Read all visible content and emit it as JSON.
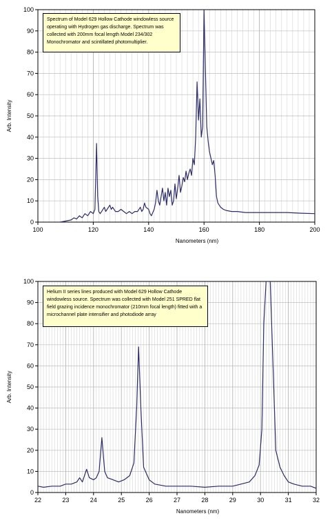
{
  "chart_data": [
    {
      "type": "line",
      "title": "",
      "xlabel": "Nanometers (nm)",
      "ylabel": "Arb. Intensity",
      "xlim": [
        100,
        200
      ],
      "ylim": [
        0,
        100
      ],
      "x_ticks": [
        "100",
        "120",
        "140",
        "160",
        "180",
        "200"
      ],
      "y_ticks": [
        "0",
        "10",
        "20",
        "30",
        "40",
        "50",
        "60",
        "70",
        "80",
        "90",
        "100"
      ],
      "grid": true,
      "annotation": "Spectrum of Model 629 Hollow Cathode windowless source operating with Hydrogen gas discharge. Spectrum was collected with 200mm focal length Model 234/302 Monochromator and scintillated photomultiplier.",
      "series": [
        {
          "color": "#2b2b6b",
          "points": [
            [
              108,
              0
            ],
            [
              110,
              0.5
            ],
            [
              112,
              1
            ],
            [
              113,
              2
            ],
            [
              114,
              1.5
            ],
            [
              115,
              3
            ],
            [
              116,
              2
            ],
            [
              117,
              4
            ],
            [
              118,
              3
            ],
            [
              119,
              5
            ],
            [
              120,
              4
            ],
            [
              120.6,
              6
            ],
            [
              121.2,
              37
            ],
            [
              121.6,
              12
            ],
            [
              122,
              5
            ],
            [
              122.5,
              4
            ],
            [
              123,
              5
            ],
            [
              124,
              7
            ],
            [
              124.5,
              5
            ],
            [
              125,
              6
            ],
            [
              126,
              8
            ],
            [
              126.5,
              6
            ],
            [
              127,
              7
            ],
            [
              128,
              5
            ],
            [
              129,
              5
            ],
            [
              130,
              6
            ],
            [
              131,
              5
            ],
            [
              132,
              4
            ],
            [
              133,
              5
            ],
            [
              134,
              4
            ],
            [
              135,
              5
            ],
            [
              136,
              5
            ],
            [
              137,
              7
            ],
            [
              137.5,
              5
            ],
            [
              138,
              6
            ],
            [
              138.5,
              9
            ],
            [
              139,
              7
            ],
            [
              140,
              6
            ],
            [
              140.5,
              4
            ],
            [
              141,
              3
            ],
            [
              142,
              6
            ],
            [
              142.5,
              9
            ],
            [
              143,
              15
            ],
            [
              143.5,
              10
            ],
            [
              144,
              8
            ],
            [
              144.5,
              12
            ],
            [
              145,
              16
            ],
            [
              145.5,
              10
            ],
            [
              146,
              14
            ],
            [
              146.5,
              8
            ],
            [
              147,
              16
            ],
            [
              147.5,
              12
            ],
            [
              148,
              15
            ],
            [
              148.5,
              8
            ],
            [
              149,
              10
            ],
            [
              149.5,
              18
            ],
            [
              150,
              11
            ],
            [
              150.5,
              16
            ],
            [
              151,
              22
            ],
            [
              151.5,
              14
            ],
            [
              152,
              17
            ],
            [
              152.5,
              21
            ],
            [
              153,
              19
            ],
            [
              153.5,
              24
            ],
            [
              154,
              20
            ],
            [
              154.5,
              23
            ],
            [
              155,
              25
            ],
            [
              155.5,
              22
            ],
            [
              156,
              30
            ],
            [
              156.5,
              27
            ],
            [
              157,
              40
            ],
            [
              157.5,
              66
            ],
            [
              158,
              48
            ],
            [
              158.5,
              58
            ],
            [
              159,
              40
            ],
            [
              159.5,
              45
            ],
            [
              160,
              100
            ],
            [
              160.5,
              72
            ],
            [
              161,
              45
            ],
            [
              161.5,
              38
            ],
            [
              162,
              33
            ],
            [
              162.5,
              30
            ],
            [
              163,
              27
            ],
            [
              163.5,
              29
            ],
            [
              164,
              22
            ],
            [
              164.5,
              12
            ],
            [
              165,
              9
            ],
            [
              166,
              7
            ],
            [
              167,
              6
            ],
            [
              168,
              5.5
            ],
            [
              170,
              5
            ],
            [
              172,
              5
            ],
            [
              175,
              4.5
            ],
            [
              180,
              4.5
            ],
            [
              185,
              4.5
            ],
            [
              190,
              4.5
            ],
            [
              195,
              4.2
            ],
            [
              200,
              4
            ]
          ]
        }
      ]
    },
    {
      "type": "line",
      "title": "",
      "xlabel": "Nanometers (nm)",
      "ylabel": "Arb. Intensity",
      "xlim": [
        22,
        32
      ],
      "ylim": [
        0,
        100
      ],
      "x_ticks": [
        "22",
        "23",
        "24",
        "25",
        "26",
        "27",
        "28",
        "29",
        "30",
        "31",
        "32"
      ],
      "y_ticks": [
        "0",
        "10",
        "20",
        "30",
        "40",
        "50",
        "60",
        "70",
        "80",
        "90",
        "100"
      ],
      "grid": true,
      "annotation": "Helium II series lines produced with Model 629 Hollow Cathode windowless source. Spectrum was collected with Model 251 SPRED flat field grazing incidence monochromator (210mm focal length) fitted with a microchannel plate intensifier and photodiode array",
      "series": [
        {
          "color": "#2b2b6b",
          "points": [
            [
              22,
              3
            ],
            [
              22.2,
              2.5
            ],
            [
              22.5,
              3
            ],
            [
              22.8,
              3
            ],
            [
              23,
              4
            ],
            [
              23.2,
              4
            ],
            [
              23.4,
              5
            ],
            [
              23.5,
              7
            ],
            [
              23.6,
              5
            ],
            [
              23.75,
              11
            ],
            [
              23.85,
              7
            ],
            [
              24,
              6
            ],
            [
              24.1,
              7
            ],
            [
              24.2,
              10
            ],
            [
              24.3,
              26
            ],
            [
              24.4,
              10
            ],
            [
              24.5,
              7
            ],
            [
              24.7,
              6
            ],
            [
              24.9,
              5
            ],
            [
              25.1,
              6
            ],
            [
              25.3,
              8
            ],
            [
              25.45,
              14
            ],
            [
              25.55,
              40
            ],
            [
              25.62,
              69
            ],
            [
              25.7,
              40
            ],
            [
              25.8,
              12
            ],
            [
              26,
              6
            ],
            [
              26.2,
              4
            ],
            [
              26.4,
              3.5
            ],
            [
              26.6,
              3
            ],
            [
              27,
              3
            ],
            [
              27.5,
              3
            ],
            [
              28,
              2.5
            ],
            [
              28.5,
              3
            ],
            [
              29,
              3
            ],
            [
              29.3,
              4
            ],
            [
              29.6,
              5
            ],
            [
              29.8,
              8
            ],
            [
              29.95,
              13
            ],
            [
              30.05,
              30
            ],
            [
              30.12,
              80
            ],
            [
              30.2,
              100
            ],
            [
              30.35,
              100
            ],
            [
              30.45,
              60
            ],
            [
              30.55,
              20
            ],
            [
              30.7,
              12
            ],
            [
              30.85,
              8
            ],
            [
              31,
              5
            ],
            [
              31.2,
              4
            ],
            [
              31.5,
              3
            ],
            [
              31.8,
              3
            ],
            [
              32,
              2
            ]
          ]
        }
      ]
    }
  ]
}
